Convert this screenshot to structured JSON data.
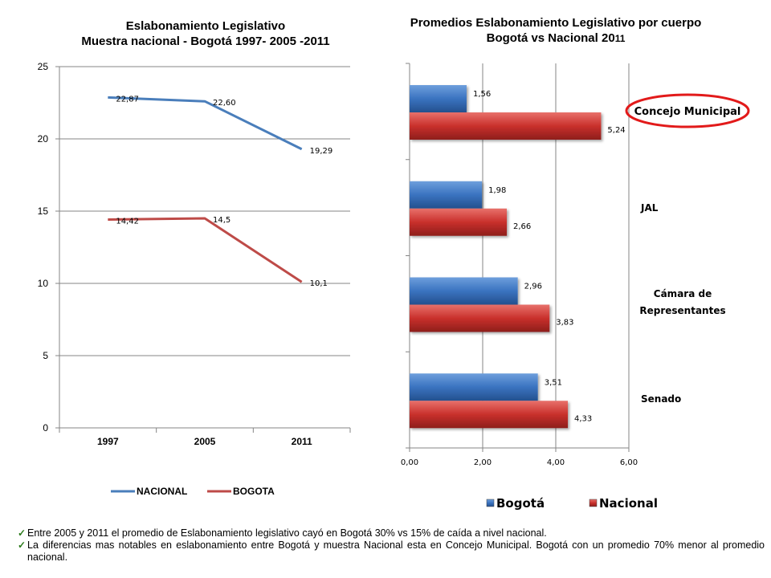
{
  "chart_data": [
    {
      "type": "line",
      "title": "Eslabonamiento Legislativo",
      "subtitle": "Muestra nacional - Bogotá  1997- 2005 -2011",
      "categories": [
        "1997",
        "2005",
        "2011"
      ],
      "ylim": [
        0,
        25
      ],
      "yticks": [
        "0",
        "5",
        "10",
        "15",
        "20",
        "25"
      ],
      "grid": true,
      "legend_position": "bottom",
      "series": [
        {
          "name": "NACIONAL",
          "color": "#4a7ebb",
          "values": [
            22.87,
            22.6,
            19.29
          ],
          "labels": [
            "22,87",
            "22,60",
            "19,29"
          ]
        },
        {
          "name": "BOGOTA",
          "color": "#be4b48",
          "values": [
            14.42,
            14.5,
            10.1
          ],
          "labels": [
            "14,42",
            "14,5",
            "10,1"
          ]
        }
      ]
    },
    {
      "type": "bar",
      "orientation": "horizontal",
      "title": "Promedios Eslabonamiento Legislativo por cuerpo",
      "subtitle": "Bogotá  vs Nacional  20",
      "subtitle_tail": "11",
      "categories": [
        "Concejo Municipal",
        "JAL",
        "Cámara de Representantes",
        "Senado"
      ],
      "xlim": [
        0,
        6
      ],
      "xticks": [
        "0,00",
        "2,00",
        "4,00",
        "6,00"
      ],
      "grid": true,
      "legend_position": "bottom",
      "highlight": "Concejo Municipal",
      "series": [
        {
          "name": "Bogotá",
          "color": "#3a73c0",
          "values": [
            1.56,
            1.98,
            2.96,
            3.51
          ],
          "labels": [
            "1,56",
            "1,98",
            "2,96",
            "3,51"
          ]
        },
        {
          "name": "Nacional",
          "color": "#c9302c",
          "values": [
            5.24,
            2.66,
            3.83,
            4.33
          ],
          "labels": [
            "5,24",
            "2,66",
            "3,83",
            "4,33"
          ]
        }
      ]
    }
  ],
  "notes": [
    "Entre 2005 y 2011 el promedio de Eslabonamiento legislativo cayó en Bogotá 30% vs 15% de caída a nivel nacional.",
    "La diferencias mas notables en eslabonamiento entre Bogotá y muestra Nacional esta en Concejo Municipal. Bogotá  con un promedio 70% menor al promedio nacional."
  ],
  "check_icon": "check-icon"
}
